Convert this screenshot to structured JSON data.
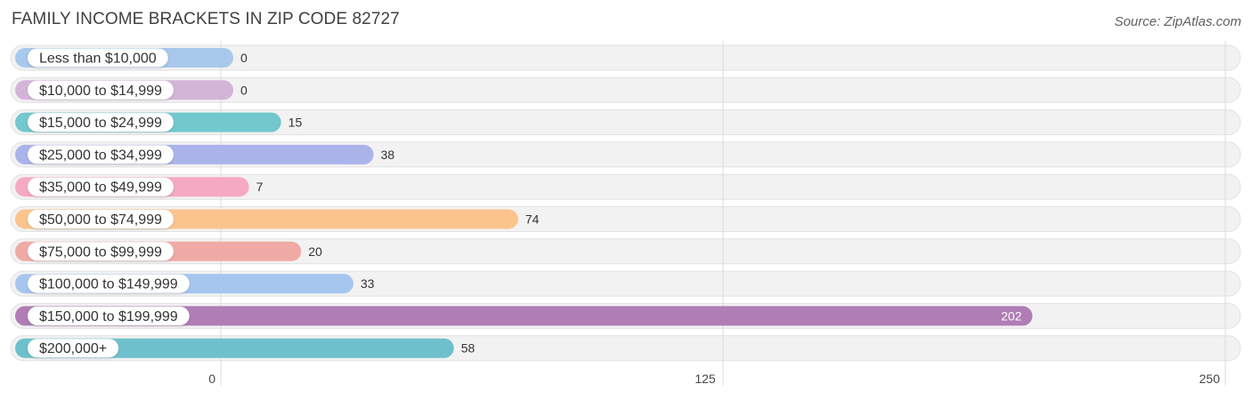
{
  "header": {
    "title": "FAMILY INCOME BRACKETS IN ZIP CODE 82727",
    "source": "Source: ZipAtlas.com"
  },
  "chart_data": {
    "type": "bar",
    "orientation": "horizontal",
    "title": "FAMILY INCOME BRACKETS IN ZIP CODE 82727",
    "categories": [
      "Less than $10,000",
      "$10,000 to $14,999",
      "$15,000 to $24,999",
      "$25,000 to $34,999",
      "$35,000 to $49,999",
      "$50,000 to $74,999",
      "$75,000 to $99,999",
      "$100,000 to $149,999",
      "$150,000 to $199,999",
      "$200,000+"
    ],
    "values": [
      0,
      0,
      15,
      38,
      7,
      74,
      20,
      33,
      202,
      58
    ],
    "colors": [
      "#a8c8ec",
      "#d3b5d8",
      "#72c8cd",
      "#aab3ea",
      "#f6a9c3",
      "#fbc48d",
      "#f0aaa5",
      "#a7c6ee",
      "#b07db5",
      "#6ec1cc"
    ],
    "xlim": [
      0,
      250
    ],
    "xticks": [
      0,
      125,
      250
    ],
    "grid": true,
    "legend": "none"
  }
}
